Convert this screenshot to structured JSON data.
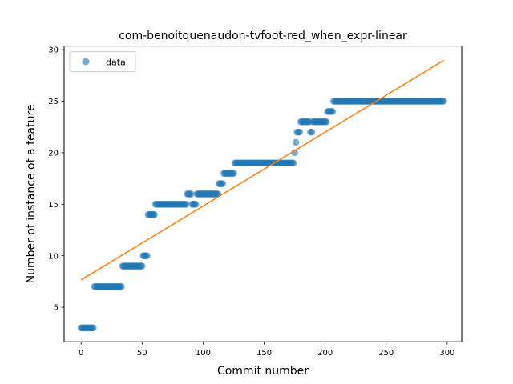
{
  "chart_data": {
    "type": "scatter",
    "title": "com-benoitquenaudon-tvfoot-red_when_expr-linear",
    "xlabel": "Commit number",
    "ylabel": "Number of instance of a feature",
    "xlim": [
      -13.9,
      311.9
    ],
    "ylim": [
      1.65,
      30.35
    ],
    "xticks": [
      0,
      50,
      100,
      150,
      200,
      250,
      300
    ],
    "yticks": [
      5,
      10,
      15,
      20,
      25,
      30
    ],
    "legend": {
      "position": "top-left",
      "entries": [
        "data"
      ]
    },
    "colors": {
      "data": "#1f77b4",
      "fit": "#ff7f0e"
    },
    "segments": [
      {
        "start": 0,
        "end": 11,
        "y": 3
      },
      {
        "start": 11,
        "end": 34,
        "y": 7
      },
      {
        "start": 34,
        "end": 51,
        "y": 9
      },
      {
        "start": 51,
        "end": 55,
        "y": 10
      },
      {
        "start": 55,
        "end": 61,
        "y": 14
      },
      {
        "start": 61,
        "end": 87,
        "y": 15
      },
      {
        "start": 87,
        "end": 91,
        "y": 16
      },
      {
        "start": 91,
        "end": 95,
        "y": 15
      },
      {
        "start": 95,
        "end": 113,
        "y": 16
      },
      {
        "start": 113,
        "end": 117,
        "y": 17
      },
      {
        "start": 117,
        "end": 126,
        "y": 18
      },
      {
        "start": 126,
        "end": 175,
        "y": 19
      },
      {
        "start": 175,
        "end": 176,
        "y": 20
      },
      {
        "start": 176,
        "end": 177,
        "y": 21
      },
      {
        "start": 177,
        "end": 180,
        "y": 22
      },
      {
        "start": 180,
        "end": 188,
        "y": 23
      },
      {
        "start": 188,
        "end": 190,
        "y": 22
      },
      {
        "start": 190,
        "end": 202,
        "y": 23
      },
      {
        "start": 202,
        "end": 207,
        "y": 24
      },
      {
        "start": 207,
        "end": 297,
        "y": 25
      }
    ],
    "fit_line": {
      "x": [
        0,
        297
      ],
      "y": [
        7.65,
        28.95
      ]
    }
  }
}
